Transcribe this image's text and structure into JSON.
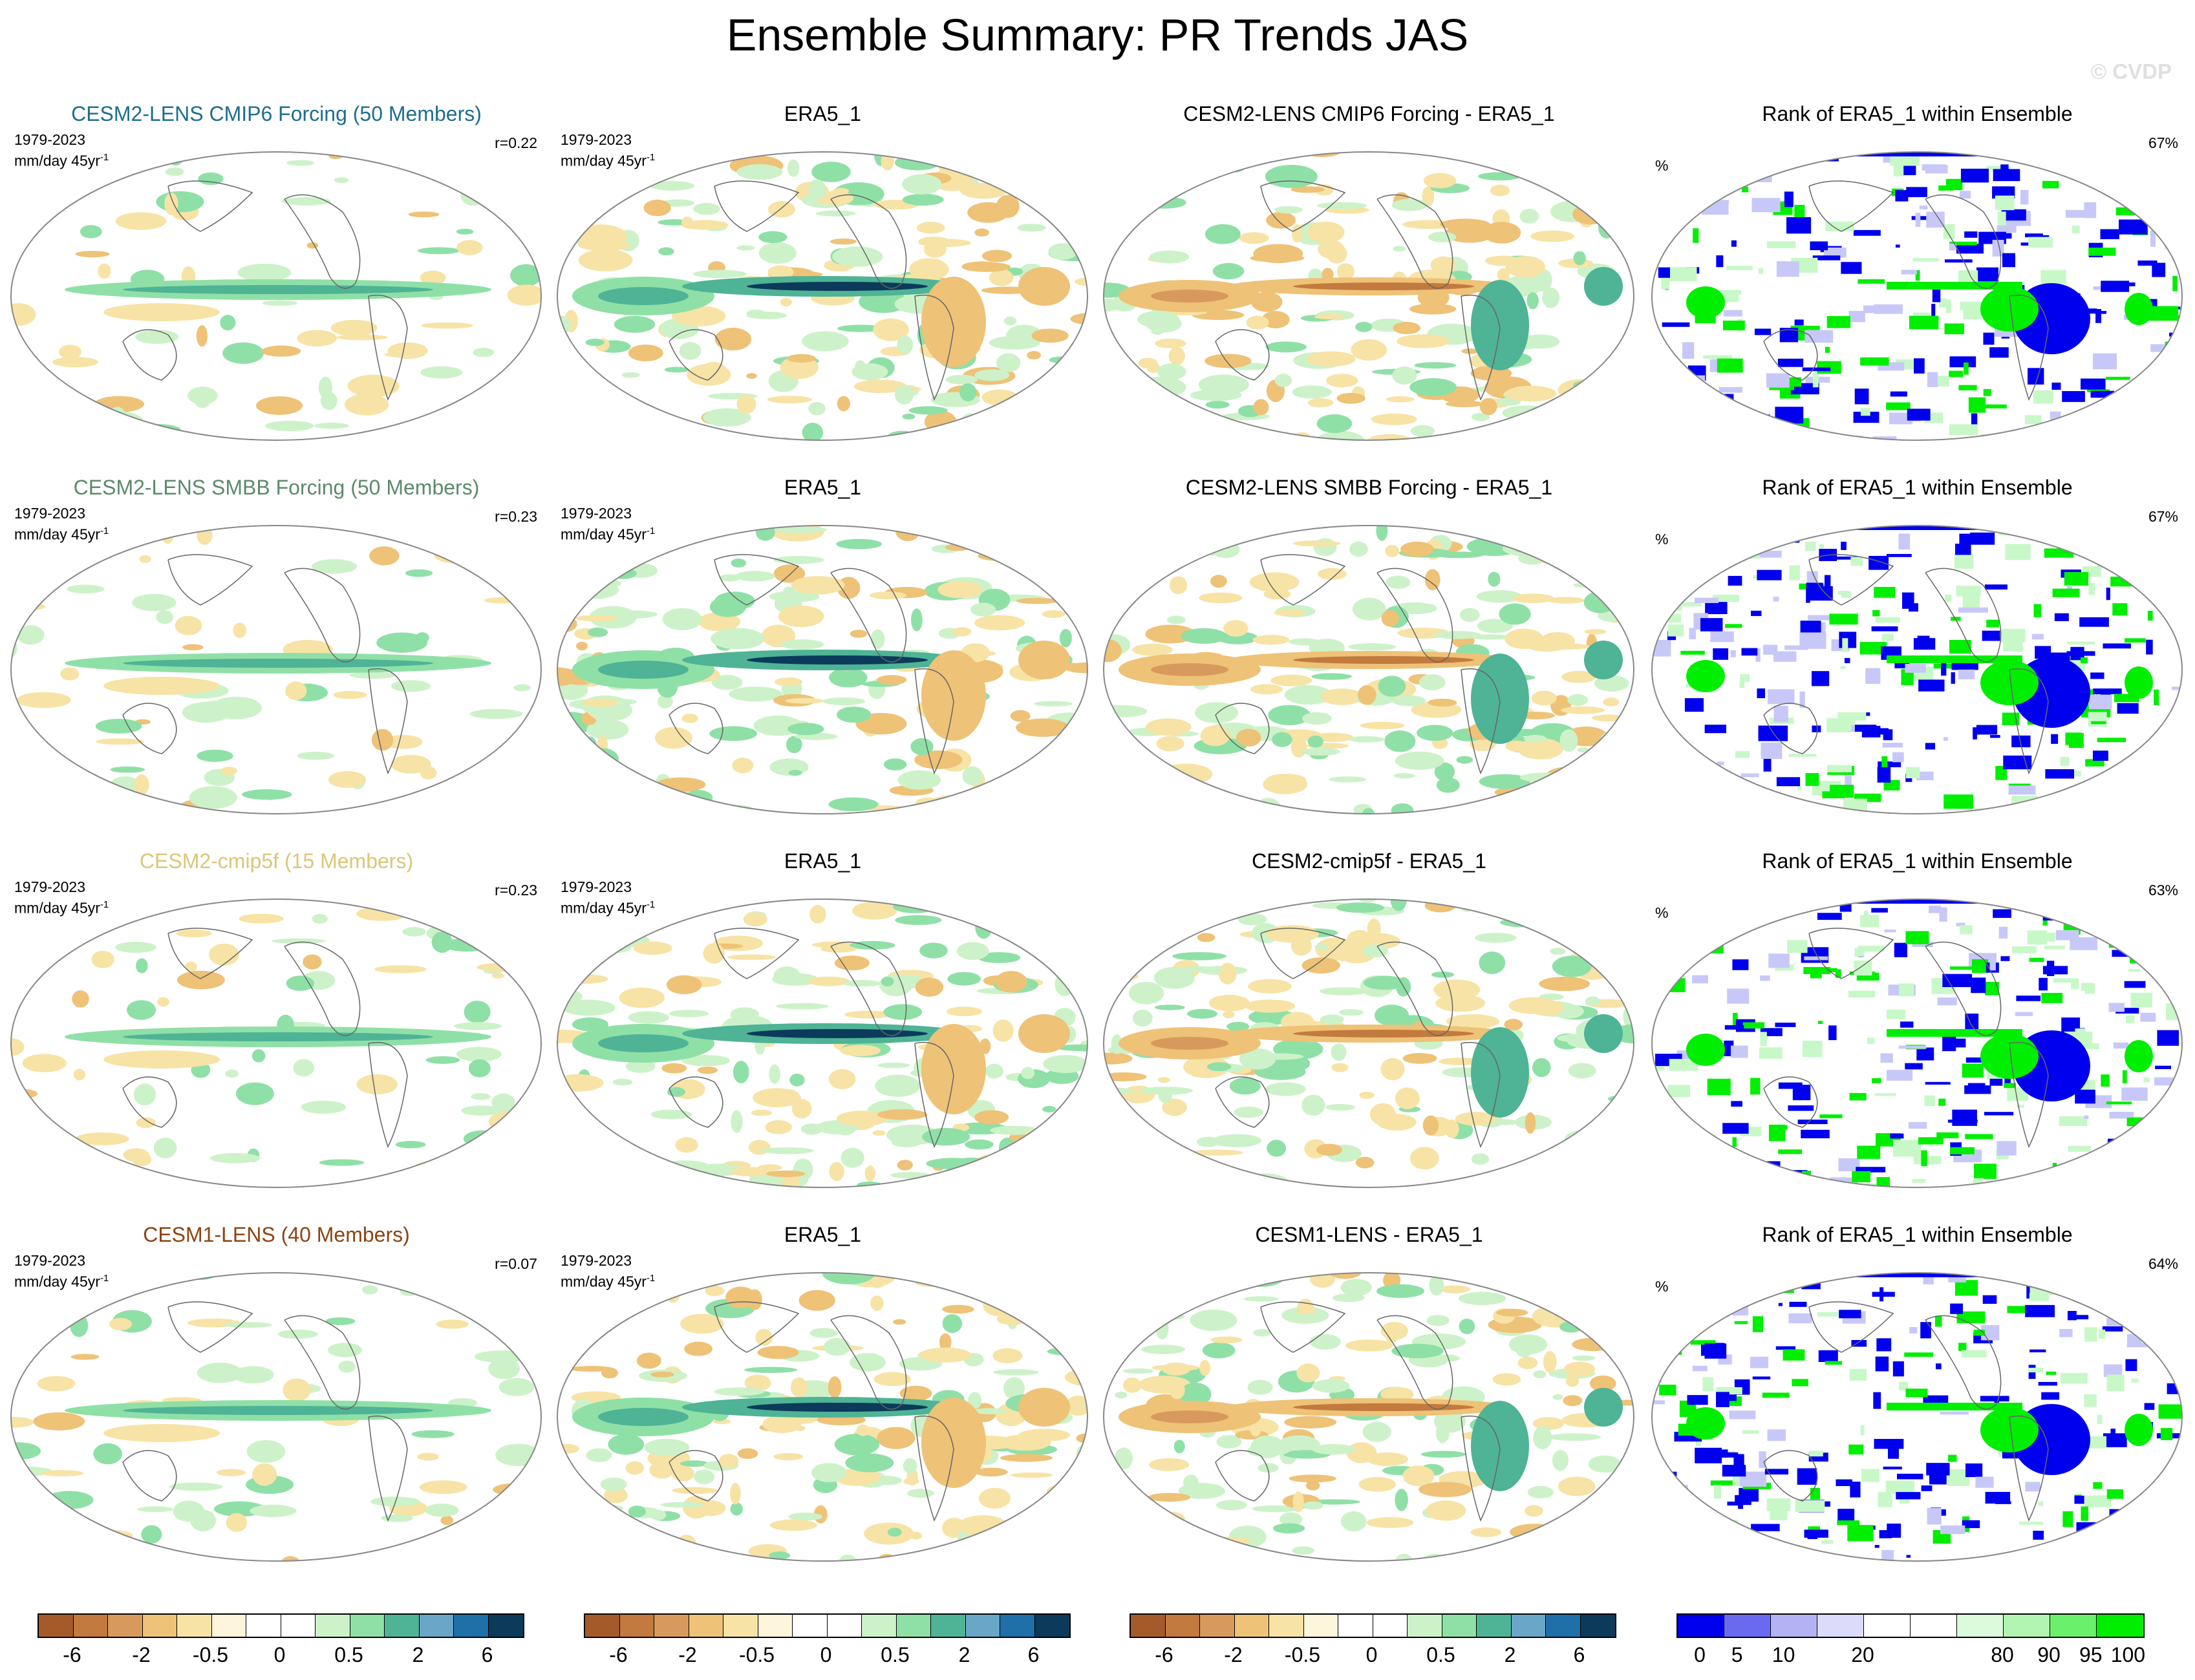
{
  "title": "Ensemble Summary: PR Trends JAS",
  "watermark": "© CVDP",
  "colors": {
    "brown_deep": "#a55a2a",
    "brown": "#c27a3f",
    "tan": "#d89a5c",
    "sand": "#eec277",
    "cream": "#f7e3a5",
    "green_light": "#cdf2c9",
    "green": "#8fe0a7",
    "teal": "#4fb395",
    "blue_mid": "#3f8fc0",
    "navy": "#0b3a5a",
    "rank_blue": "#0000ee",
    "rank_green": "#00ee00"
  },
  "rows": [
    {
      "ens": {
        "title": "CESM2-LENS CMIP6 Forcing (50 Members)",
        "title_color": "#1d6e90",
        "period": "1979-2023",
        "units": "mm/day 45yr",
        "units_sup": "-1",
        "r": "r=0.22"
      },
      "obs": {
        "title": "ERA5_1",
        "period": "1979-2023",
        "units": "mm/day 45yr",
        "units_sup": "-1"
      },
      "diff": {
        "title": "CESM2-LENS CMIP6 Forcing - ERA5_1"
      },
      "rank": {
        "title": "Rank of ERA5_1 within Ensemble",
        "unit": "%",
        "pct": "67%"
      }
    },
    {
      "ens": {
        "title": "CESM2-LENS SMBB Forcing (50 Members)",
        "title_color": "#5d8a6a",
        "period": "1979-2023",
        "units": "mm/day 45yr",
        "units_sup": "-1",
        "r": "r=0.23"
      },
      "obs": {
        "title": "ERA5_1",
        "period": "1979-2023",
        "units": "mm/day 45yr",
        "units_sup": "-1"
      },
      "diff": {
        "title": "CESM2-LENS SMBB Forcing - ERA5_1"
      },
      "rank": {
        "title": "Rank of ERA5_1 within Ensemble",
        "unit": "%",
        "pct": "67%"
      }
    },
    {
      "ens": {
        "title": "CESM2-cmip5f (15 Members)",
        "title_color": "#d9c77a",
        "period": "1979-2023",
        "units": "mm/day 45yr",
        "units_sup": "-1",
        "r": "r=0.23"
      },
      "obs": {
        "title": "ERA5_1",
        "period": "1979-2023",
        "units": "mm/day 45yr",
        "units_sup": "-1"
      },
      "diff": {
        "title": "CESM2-cmip5f - ERA5_1"
      },
      "rank": {
        "title": "Rank of ERA5_1 within Ensemble",
        "unit": "%",
        "pct": "63%"
      }
    },
    {
      "ens": {
        "title": "CESM1-LENS (40 Members)",
        "title_color": "#8b4513",
        "period": "1979-2023",
        "units": "mm/day 45yr",
        "units_sup": "-1",
        "r": "r=0.07"
      },
      "obs": {
        "title": "ERA5_1",
        "period": "1979-2023",
        "units": "mm/day 45yr",
        "units_sup": "-1"
      },
      "diff": {
        "title": "CESM1-LENS - ERA5_1"
      },
      "rank": {
        "title": "Rank of ERA5_1 within Ensemble",
        "unit": "%",
        "pct": "64%"
      }
    }
  ],
  "colorbars": {
    "trend": {
      "colors": [
        "#a55a2a",
        "#c27a3f",
        "#d89a5c",
        "#eec277",
        "#f7e3a5",
        "#fdf6dc",
        "#ffffff",
        "#ffffff",
        "#cdf2c9",
        "#8fe0a7",
        "#4fb395",
        "#6aa6c8",
        "#1f6fa8",
        "#0b3a5a"
      ],
      "labels": [
        "-6",
        "-2",
        "-0.5",
        "0",
        "0.5",
        "2",
        "6"
      ]
    },
    "rank": {
      "colors": [
        "#0000ee",
        "#6a6af0",
        "#b2b2f5",
        "#dcdcfa",
        "#ffffff",
        "#ffffff",
        "#dcfadc",
        "#b2f5b2",
        "#6af06a",
        "#00ee00"
      ],
      "labels": [
        "0",
        "5",
        "10",
        "20",
        "80",
        "90",
        "95",
        "100"
      ]
    }
  }
}
